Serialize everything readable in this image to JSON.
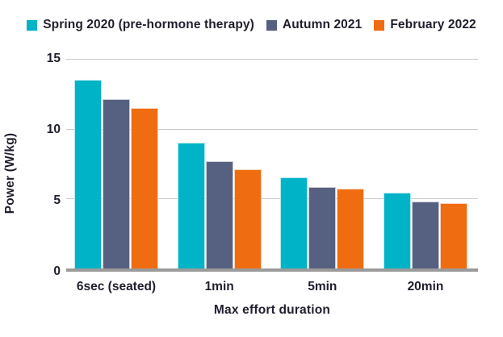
{
  "chart_data": {
    "type": "bar",
    "title": "",
    "xlabel": "Max effort duration",
    "ylabel": "Power (W/kg)",
    "ylim": [
      0,
      15
    ],
    "ytick_labels": [
      "15",
      "10",
      "5",
      "0"
    ],
    "grid": "horizontal gridlines at 5, 10, 15",
    "legend_position": "top",
    "categories": [
      "6sec (seated)",
      "1min",
      "5min",
      "20min"
    ],
    "series": [
      {
        "name": "Spring 2020 (pre-hormone therapy)",
        "color": "#00b3c7",
        "values": [
          13.5,
          9.0,
          6.5,
          5.4
        ]
      },
      {
        "name": "Autumn 2021",
        "color": "#566080",
        "values": [
          12.1,
          7.7,
          5.8,
          4.8
        ]
      },
      {
        "name": "February 2022",
        "color": "#f06c11",
        "values": [
          11.5,
          7.1,
          5.7,
          4.7
        ]
      }
    ]
  },
  "colors": {
    "text": "#211e2e",
    "gridline": "#c9c9c9",
    "axis_line": "#9b9b9b",
    "background": "#ffffff"
  }
}
